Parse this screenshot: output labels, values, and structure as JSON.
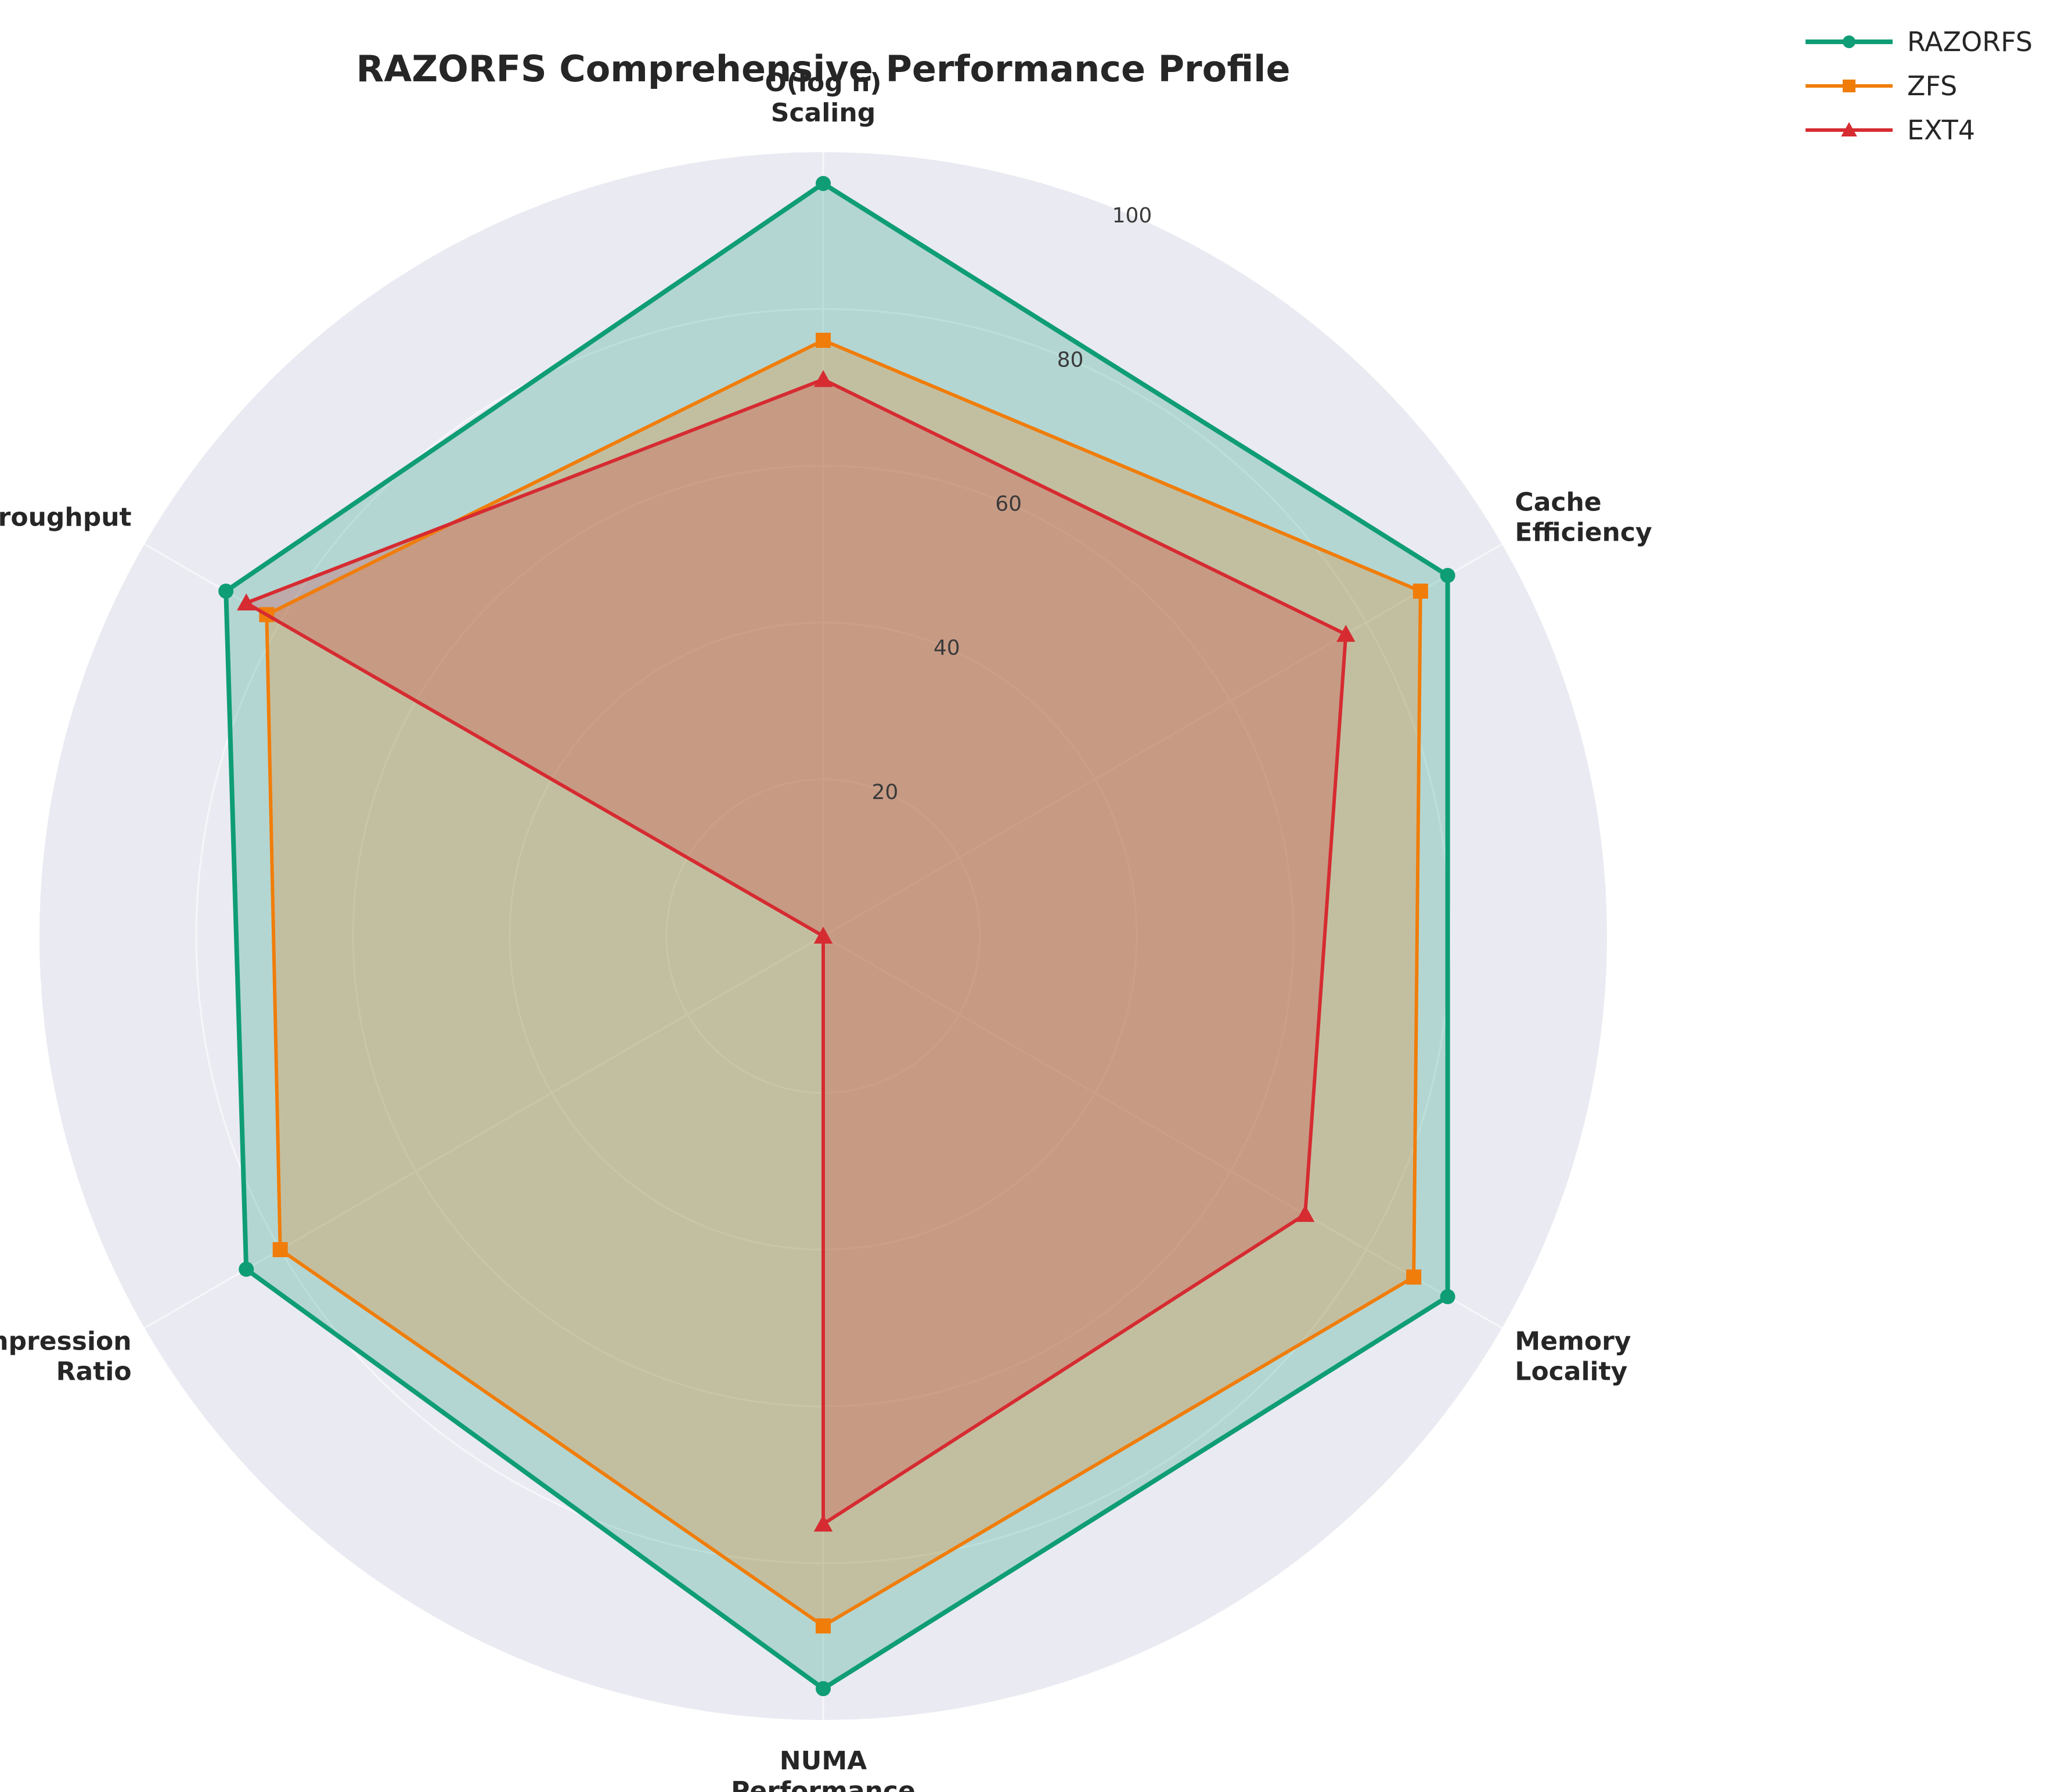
{
  "chart_data": {
    "type": "radar",
    "title": "RAZORFS Comprehensive Performance Profile",
    "axes": [
      {
        "lines": [
          "O(log n)",
          "Scaling"
        ]
      },
      {
        "lines": [
          "Cache",
          "Efficiency"
        ]
      },
      {
        "lines": [
          "Memory",
          "Locality"
        ]
      },
      {
        "lines": [
          "NUMA",
          "Performance"
        ]
      },
      {
        "lines": [
          "Compression",
          "Ratio"
        ]
      },
      {
        "lines": [
          "Throughput"
        ]
      }
    ],
    "rlim": [
      0,
      100
    ],
    "rticks": [
      20,
      40,
      60,
      80,
      100
    ],
    "grid": true,
    "legend_position": "top-right",
    "series": [
      {
        "name": "RAZORFS",
        "color": "#0f9d76",
        "marker": "circle",
        "values": [
          96,
          92,
          92,
          96,
          85,
          88
        ]
      },
      {
        "name": "ZFS",
        "color": "#f07d0a",
        "marker": "square",
        "values": [
          76,
          88,
          87,
          88,
          80,
          82
        ]
      },
      {
        "name": "EXT4",
        "color": "#d62b31",
        "marker": "triangle",
        "values": [
          71,
          77,
          71,
          75,
          0,
          85
        ]
      }
    ],
    "background_color": "#eaeaf2"
  }
}
